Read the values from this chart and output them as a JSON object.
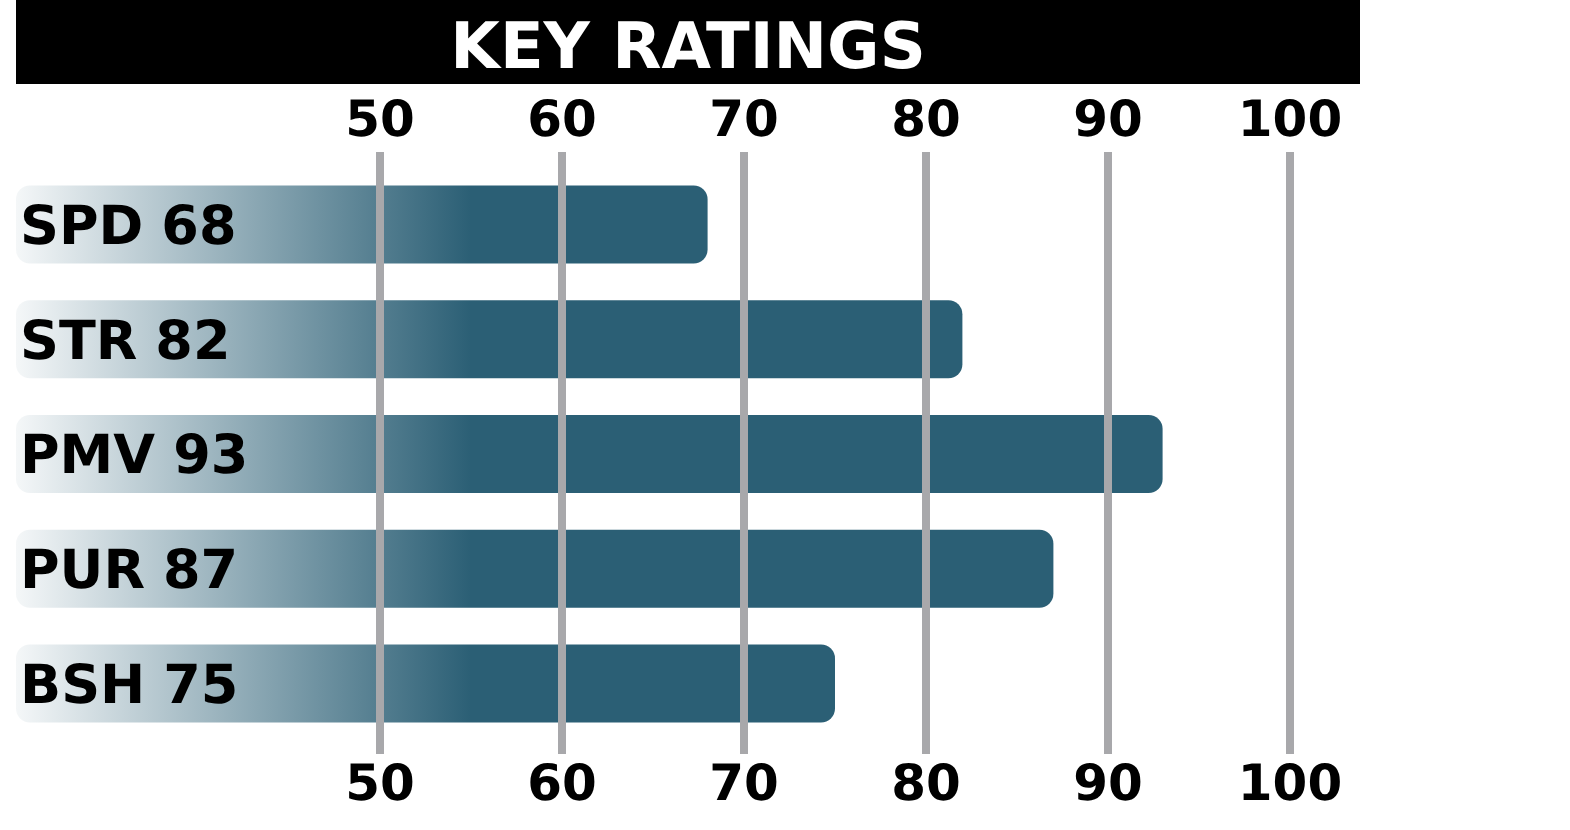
{
  "chart_data": {
    "type": "bar",
    "orientation": "horizontal",
    "title": "KEY RATINGS",
    "categories": [
      "SPD",
      "STR",
      "PMV",
      "PUR",
      "BSH"
    ],
    "values": [
      68,
      82,
      93,
      87,
      75
    ],
    "color": "#2b5f75",
    "data_labels": true,
    "xlim": [
      30,
      100
    ],
    "xticks": [
      50,
      60,
      70,
      80,
      90,
      100
    ],
    "x2lim": [
      30,
      100
    ],
    "x2ticks": [
      50,
      60,
      70,
      80,
      90,
      100
    ],
    "grid": "x"
  }
}
